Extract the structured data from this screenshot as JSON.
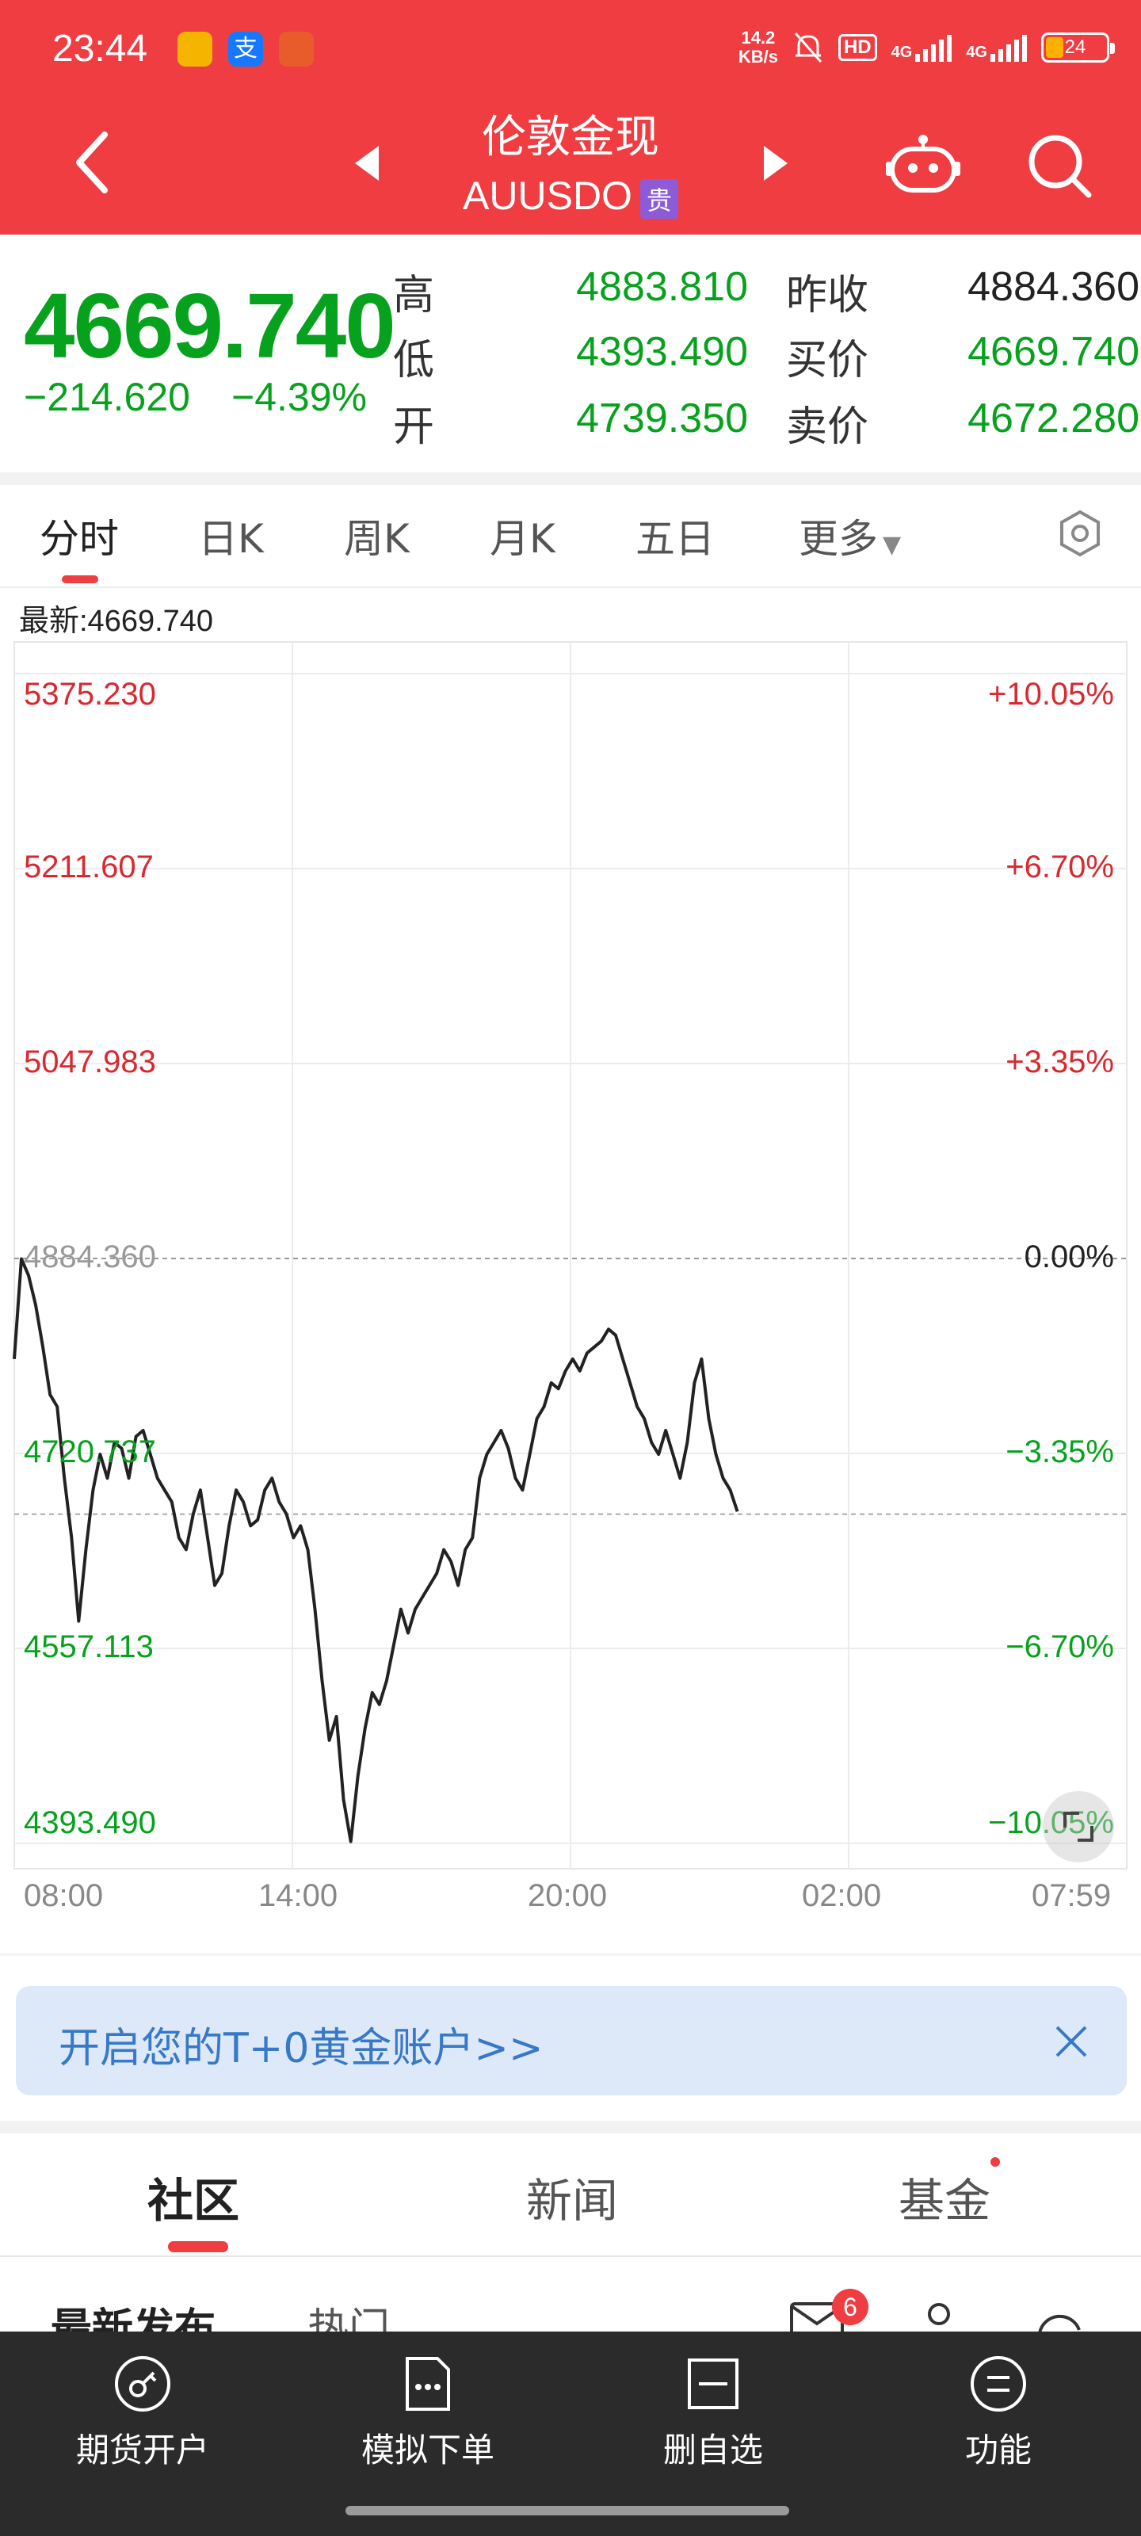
{
  "status": {
    "time": "23:44",
    "netspeed_value": "14.2",
    "netspeed_unit": "KB/s",
    "hd_label": "HD",
    "network_1": "4G",
    "network_2": "4G",
    "battery": "24",
    "alipay_glyph": "支",
    "battery_color": "#ffb000"
  },
  "header": {
    "title": "伦敦金现",
    "symbol": "AUUSDO",
    "badge": "贵",
    "back_icon": "chevron-left-icon",
    "robot_icon": "robot-icon",
    "search_icon": "search-icon"
  },
  "quote": {
    "price": "4669.740",
    "change": "−214.620",
    "change_pct": "−4.39%",
    "high_label": "高",
    "high": "4883.810",
    "low_label": "低",
    "low": "4393.490",
    "open_label": "开",
    "open": "4739.350",
    "prev_close_label": "昨收",
    "prev_close": "4884.360",
    "bid_label": "买价",
    "bid": "4669.740",
    "ask_label": "卖价",
    "ask": "4672.280",
    "up_color": "#d9282f",
    "down_color": "#07a21d"
  },
  "chart_tabs": {
    "items": [
      "分时",
      "日K",
      "周K",
      "月K",
      "五日",
      "更多"
    ],
    "active": "分时"
  },
  "chart_latest": "最新:4669.740",
  "chart_data": {
    "type": "line",
    "y_ticks": [
      "5375.230",
      "5211.607",
      "5047.983",
      "4884.360",
      "4720.737",
      "4557.113",
      "4393.490"
    ],
    "y_pct_ticks": [
      "+10.05%",
      "+6.70%",
      "+3.35%",
      "0.00%",
      "−3.35%",
      "−6.70%",
      "−10.05%"
    ],
    "x_ticks": [
      "08:00",
      "14:00",
      "20:00",
      "02:00",
      "07:59"
    ],
    "ylim": [
      4393.49,
      5375.23
    ],
    "reference": 4884.36,
    "last_value": 4669.74,
    "series": [
      {
        "values": [
          4800,
          4884,
          4870,
          4845,
          4810,
          4770,
          4760,
          4700,
          4650,
          4580,
          4640,
          4690,
          4720,
          4700,
          4730,
          4725,
          4700,
          4735,
          4740,
          4720,
          4700,
          4690,
          4680,
          4650,
          4640,
          4670,
          4690,
          4650,
          4610,
          4620,
          4660,
          4690,
          4680,
          4660,
          4665,
          4690,
          4700,
          4680,
          4670,
          4650,
          4660,
          4640,
          4590,
          4530,
          4480,
          4500,
          4430,
          4395,
          4450,
          4490,
          4520,
          4510,
          4530,
          4560,
          4590,
          4570,
          4590,
          4600,
          4610,
          4620,
          4640,
          4630,
          4610,
          4640,
          4650,
          4700,
          4720,
          4730,
          4740,
          4725,
          4700,
          4690,
          4720,
          4750,
          4760,
          4780,
          4775,
          4790,
          4800,
          4790,
          4805,
          4810,
          4815,
          4825,
          4820,
          4800,
          4780,
          4760,
          4750,
          4730,
          4720,
          4740,
          4720,
          4700,
          4730,
          4780,
          4800,
          4750,
          4720,
          4700,
          4690,
          4672
        ]
      }
    ],
    "grid": true
  },
  "banner": {
    "text": "开启您的T+0黄金账户>>",
    "close_icon": "close-icon"
  },
  "community_tabs": {
    "items": [
      "社区",
      "新闻",
      "基金"
    ],
    "active": "社区"
  },
  "community_sub": {
    "latest": "最新发布",
    "hot": "热门",
    "mail_count": "6"
  },
  "bottom_nav": {
    "items": [
      {
        "label": "期货开户",
        "icon": "key-icon"
      },
      {
        "label": "模拟下单",
        "icon": "document-icon"
      },
      {
        "label": "删自选",
        "icon": "remove-watchlist-icon"
      },
      {
        "label": "功能",
        "icon": "menu-icon"
      }
    ]
  }
}
